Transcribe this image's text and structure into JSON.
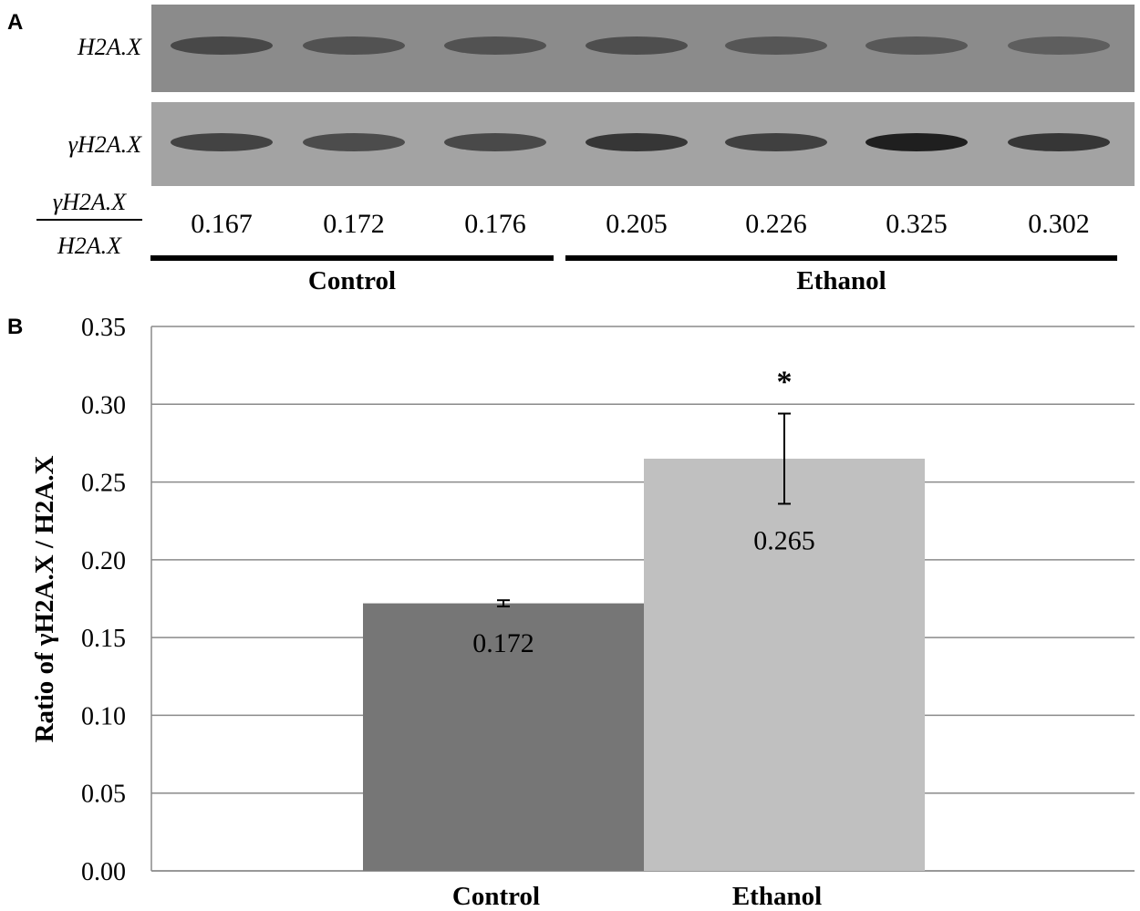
{
  "panel_a": {
    "letter": "A",
    "row1_label": "H2A.X",
    "row2_label": "γH2A.X",
    "ratio_numerator": "γH2A.X",
    "ratio_denominator": "H2A.X",
    "lanes": [
      {
        "ratio": "0.167",
        "h2ax_intensity": 0.62,
        "gamma_intensity": 0.58
      },
      {
        "ratio": "0.172",
        "h2ax_intensity": 0.5,
        "gamma_intensity": 0.5
      },
      {
        "ratio": "0.176",
        "h2ax_intensity": 0.5,
        "gamma_intensity": 0.52
      },
      {
        "ratio": "0.205",
        "h2ax_intensity": 0.55,
        "gamma_intensity": 0.72
      },
      {
        "ratio": "0.226",
        "h2ax_intensity": 0.45,
        "gamma_intensity": 0.62
      },
      {
        "ratio": "0.325",
        "h2ax_intensity": 0.42,
        "gamma_intensity": 0.95
      },
      {
        "ratio": "0.302",
        "h2ax_intensity": 0.35,
        "gamma_intensity": 0.72
      }
    ],
    "groups": [
      {
        "label": "Control",
        "lanes": [
          0,
          2
        ]
      },
      {
        "label": "Ethanol",
        "lanes": [
          3,
          6
        ]
      }
    ]
  },
  "panel_b": {
    "letter": "B",
    "chart_data": {
      "type": "bar",
      "categories": [
        "Control",
        "Ethanol"
      ],
      "values": [
        0.172,
        0.265
      ],
      "value_labels": [
        "0.172",
        "0.265"
      ],
      "error": [
        0.002,
        0.029
      ],
      "significance": [
        "",
        "*"
      ],
      "title": "",
      "xlabel": "",
      "ylabel": "Ratio of  γH2A.X / H2A.X",
      "ylim": [
        0,
        0.35
      ],
      "yticks": [
        "0.00",
        "0.05",
        "0.10",
        "0.15",
        "0.20",
        "0.25",
        "0.30",
        "0.35"
      ],
      "grid": true,
      "colors": [
        "#767676",
        "#c0c0c0"
      ]
    }
  }
}
